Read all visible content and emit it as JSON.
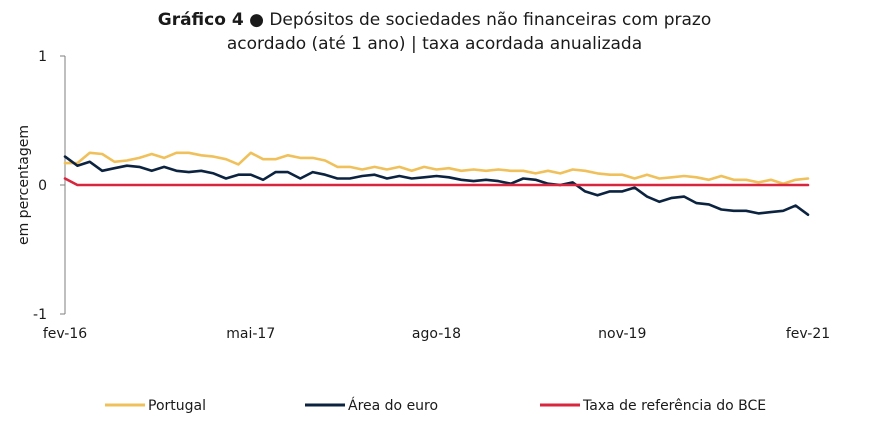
{
  "title": {
    "bold": "Gráfico 4",
    "bullet": "●",
    "rest_line1": "Depósitos de sociedades não financeiras com prazo",
    "line2": "acordado (até 1 ano) | taxa acordada anualizada"
  },
  "chart_data": {
    "type": "line",
    "title": "Gráfico 4 ● Depósitos de sociedades não financeiras com prazo acordado (até 1 ano) | taxa acordada anualizada",
    "xlabel": "",
    "ylabel": "em percentagem",
    "ylim": [
      -1,
      1
    ],
    "yticks": [
      -1,
      0,
      1
    ],
    "ytick_labels": [
      "-1",
      "0",
      "1"
    ],
    "x_start": "fev-16",
    "x_end": "fev-21",
    "xticks": [
      {
        "index": 0,
        "label": "fev-16"
      },
      {
        "index": 15,
        "label": "mai-17"
      },
      {
        "index": 30,
        "label": "ago-18"
      },
      {
        "index": 45,
        "label": "nov-19"
      },
      {
        "index": 60,
        "label": "fev-21"
      }
    ],
    "grid": false,
    "legend_position": "bottom",
    "series": [
      {
        "name": "Portugal",
        "color": "#f0c05a",
        "values": [
          0.17,
          0.17,
          0.25,
          0.24,
          0.18,
          0.19,
          0.21,
          0.24,
          0.21,
          0.25,
          0.25,
          0.23,
          0.22,
          0.2,
          0.16,
          0.25,
          0.2,
          0.2,
          0.23,
          0.21,
          0.21,
          0.19,
          0.14,
          0.14,
          0.12,
          0.14,
          0.12,
          0.14,
          0.11,
          0.14,
          0.12,
          0.13,
          0.11,
          0.12,
          0.11,
          0.12,
          0.11,
          0.11,
          0.09,
          0.11,
          0.09,
          0.12,
          0.11,
          0.09,
          0.08,
          0.08,
          0.05,
          0.08,
          0.05,
          0.06,
          0.07,
          0.06,
          0.04,
          0.07,
          0.04,
          0.04,
          0.02,
          0.04,
          0.01,
          0.04,
          0.05
        ]
      },
      {
        "name": "Área do euro",
        "color": "#0c2340",
        "values": [
          0.22,
          0.15,
          0.18,
          0.11,
          0.13,
          0.15,
          0.14,
          0.11,
          0.14,
          0.11,
          0.1,
          0.11,
          0.09,
          0.05,
          0.08,
          0.08,
          0.04,
          0.1,
          0.1,
          0.05,
          0.1,
          0.08,
          0.05,
          0.05,
          0.07,
          0.08,
          0.05,
          0.07,
          0.05,
          0.06,
          0.07,
          0.06,
          0.04,
          0.03,
          0.04,
          0.03,
          0.01,
          0.05,
          0.04,
          0.01,
          0.0,
          0.02,
          -0.05,
          -0.08,
          -0.05,
          -0.05,
          -0.02,
          -0.09,
          -0.13,
          -0.1,
          -0.09,
          -0.14,
          -0.15,
          -0.19,
          -0.2,
          -0.2,
          -0.22,
          -0.21,
          -0.2,
          -0.16,
          -0.23
        ]
      },
      {
        "name": "Taxa de referência do BCE",
        "color": "#d7263d",
        "values": [
          0.05,
          0.0,
          0.0,
          0.0,
          0.0,
          0.0,
          0.0,
          0.0,
          0.0,
          0.0,
          0.0,
          0.0,
          0.0,
          0.0,
          0.0,
          0.0,
          0.0,
          0.0,
          0.0,
          0.0,
          0.0,
          0.0,
          0.0,
          0.0,
          0.0,
          0.0,
          0.0,
          0.0,
          0.0,
          0.0,
          0.0,
          0.0,
          0.0,
          0.0,
          0.0,
          0.0,
          0.0,
          0.0,
          0.0,
          0.0,
          0.0,
          0.0,
          0.0,
          0.0,
          0.0,
          0.0,
          0.0,
          0.0,
          0.0,
          0.0,
          0.0,
          0.0,
          0.0,
          0.0,
          0.0,
          0.0,
          0.0,
          0.0,
          0.0,
          0.0,
          0.0
        ]
      }
    ]
  }
}
